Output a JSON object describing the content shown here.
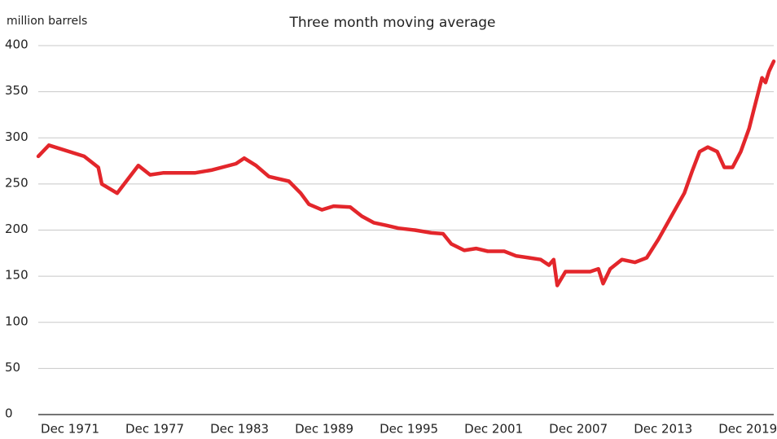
{
  "chart_data": {
    "type": "line",
    "title": "Three month moving average",
    "y_label": "million barrels",
    "x": [
      "1969-09",
      "1970-06",
      "1972-12",
      "1973-12",
      "1974-03",
      "1975-04",
      "1976-10",
      "1977-08",
      "1978-07",
      "1980-10",
      "1981-12",
      "1983-09",
      "1984-04",
      "1985-02",
      "1986-01",
      "1987-06",
      "1988-04",
      "1988-11",
      "1989-10",
      "1990-08",
      "1991-10",
      "1992-08",
      "1993-06",
      "1994-05",
      "1995-03",
      "1996-05",
      "1997-07",
      "1998-05",
      "1998-12",
      "1999-11",
      "2000-09",
      "2001-07",
      "2002-09",
      "2003-07",
      "2004-06",
      "2005-04",
      "2005-11",
      "2006-03",
      "2006-06",
      "2007-01",
      "2007-12",
      "2008-10",
      "2009-05",
      "2009-09",
      "2010-03",
      "2011-01",
      "2011-12",
      "2012-10",
      "2013-08",
      "2014-07",
      "2015-06",
      "2016-01",
      "2016-07",
      "2017-02",
      "2017-10",
      "2018-04",
      "2018-11",
      "2019-06",
      "2020-01",
      "2020-05",
      "2020-12",
      "2021-03",
      "2021-06",
      "2021-10"
    ],
    "series": [
      {
        "name": "Three month moving average",
        "color": "#e3262b",
        "values": [
          280,
          292,
          280,
          268,
          250,
          240,
          270,
          260,
          262,
          262,
          265,
          272,
          278,
          270,
          258,
          253,
          240,
          228,
          222,
          226,
          225,
          215,
          208,
          205,
          202,
          200,
          197,
          196,
          185,
          178,
          180,
          177,
          177,
          172,
          170,
          168,
          162,
          168,
          140,
          155,
          155,
          155,
          158,
          142,
          158,
          168,
          165,
          170,
          190,
          215,
          240,
          265,
          285,
          290,
          285,
          268,
          268,
          285,
          310,
          330,
          365,
          360,
          372,
          383
        ]
      }
    ],
    "xlim": [
      "1969-09",
      "2021-10"
    ],
    "xticks": [
      {
        "value": "1971-12",
        "label": "Dec 1971"
      },
      {
        "value": "1977-12",
        "label": "Dec 1977"
      },
      {
        "value": "1983-12",
        "label": "Dec 1983"
      },
      {
        "value": "1989-12",
        "label": "Dec 1989"
      },
      {
        "value": "1995-12",
        "label": "Dec 1995"
      },
      {
        "value": "2001-12",
        "label": "Dec 2001"
      },
      {
        "value": "2007-12",
        "label": "Dec 2007"
      },
      {
        "value": "2013-12",
        "label": "Dec 2013"
      },
      {
        "value": "2019-12",
        "label": "Dec 2019"
      }
    ],
    "ylim": [
      0,
      400
    ],
    "yticks": [
      0,
      50,
      100,
      150,
      200,
      250,
      300,
      350,
      400
    ],
    "grid": true
  }
}
